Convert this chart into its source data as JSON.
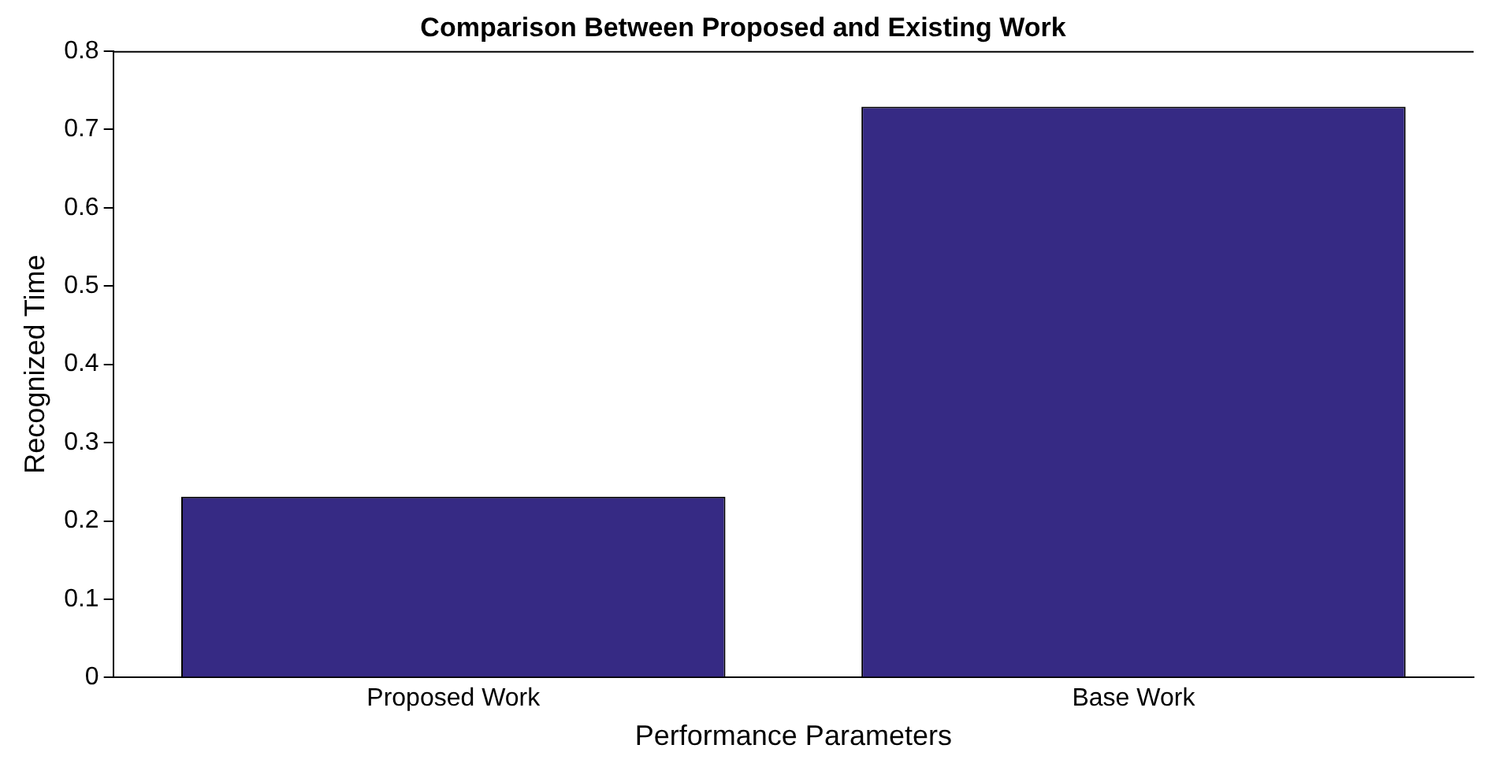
{
  "chart_data": {
    "type": "bar",
    "title": "Comparison Between Proposed and Existing Work",
    "xlabel": "Performance Parameters",
    "ylabel": "Recognized Time",
    "categories": [
      "Proposed Work",
      "Base Work"
    ],
    "values": [
      0.231,
      0.729
    ],
    "color": "#362a84",
    "ylim": [
      0,
      0.8
    ],
    "yticks": [
      0,
      0.1,
      0.2,
      0.3,
      0.4,
      0.5,
      0.6,
      0.7,
      0.8
    ],
    "grid": false,
    "legend": false
  }
}
